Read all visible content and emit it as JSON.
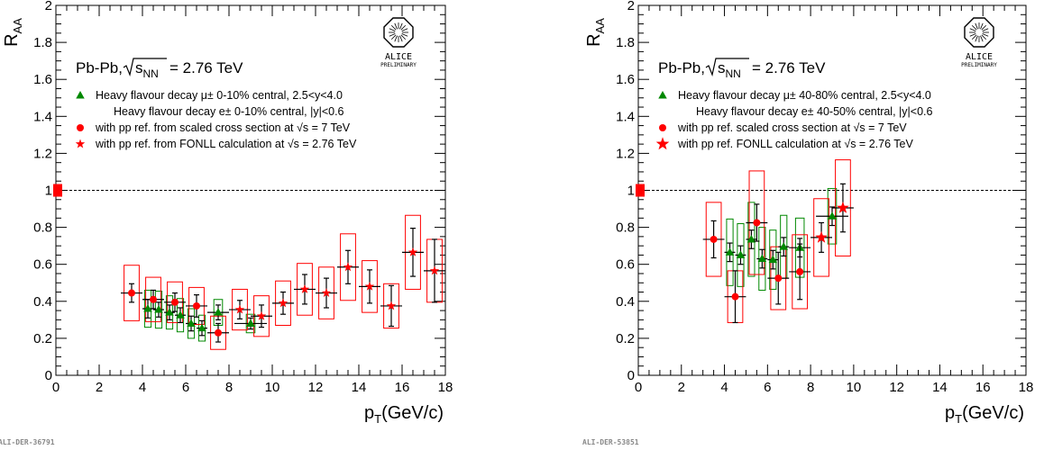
{
  "chart_data": [
    {
      "type": "scatter",
      "ylabel_main": "R",
      "ylabel_sub": "AA",
      "xlabel_main": "p",
      "xlabel_sub": "T",
      "xlabel_unit": "(GeV/c)",
      "xlim": [
        0,
        18
      ],
      "ylim": [
        0,
        2
      ],
      "xticks": [
        "0",
        "2",
        "4",
        "6",
        "8",
        "10",
        "12",
        "14",
        "16",
        "18"
      ],
      "yticks": [
        "0",
        "0.2",
        "0.4",
        "0.6",
        "0.8",
        "1",
        "1.2",
        "1.4",
        "1.6",
        "1.8",
        "2"
      ],
      "reference_line": 1,
      "system_label": "Pb-Pb, ",
      "system_energy": "= 2.76 TeV",
      "system_sqrt": "s",
      "system_sub": "NN",
      "logo_text": "ALICE",
      "logo_sub": "PRELIMINARY",
      "image_id": "ALI-DER-36791",
      "legend": [
        {
          "marker": "triangle",
          "color": "#008800",
          "text": "Heavy flavour decay μ± 0-10% central, 2.5<y<4.0"
        },
        {
          "marker": "none",
          "color": "#000000",
          "text": "Heavy flavour decay e± 0-10% central, |y|<0.6"
        },
        {
          "marker": "circle",
          "color": "#ff0000",
          "text": "with pp ref. from scaled cross section at √s = 7 TeV"
        },
        {
          "marker": "star",
          "color": "#ff0000",
          "text": "with pp ref. from FONLL calculation at  √s = 2.76 TeV"
        }
      ],
      "series": [
        {
          "name": "Heavy flavour decay μ± 0-10% central, 2.5<y<4.0",
          "marker": "triangle",
          "color": "#008800",
          "x": [
            4.25,
            4.75,
            5.25,
            5.75,
            6.25,
            6.75,
            7.5,
            9.0
          ],
          "y": [
            0.36,
            0.355,
            0.34,
            0.325,
            0.28,
            0.255,
            0.34,
            0.28
          ],
          "xerr": [
            0.25,
            0.25,
            0.25,
            0.25,
            0.25,
            0.25,
            0.5,
            0.75
          ],
          "yerr": [
            0.05,
            0.04,
            0.04,
            0.04,
            0.04,
            0.04,
            0.04,
            0.03
          ],
          "syst": [
            0.1,
            0.1,
            0.09,
            0.09,
            0.08,
            0.07,
            0.07,
            0.05
          ]
        },
        {
          "name": "with pp ref. from scaled cross section at √s = 7 TeV",
          "marker": "circle",
          "color": "#ff0000",
          "x": [
            3.5,
            4.5,
            5.5,
            6.5,
            7.5
          ],
          "y": [
            0.445,
            0.41,
            0.395,
            0.375,
            0.23
          ],
          "xerr": [
            0.5,
            0.5,
            0.5,
            0.5,
            0.5
          ],
          "yerr": [
            0.05,
            0.05,
            0.05,
            0.06,
            0.05
          ],
          "syst": [
            0.15,
            0.12,
            0.11,
            0.1,
            0.09
          ]
        },
        {
          "name": "with pp ref. from FONLL calculation at  √s = 2.76 TeV",
          "marker": "star",
          "color": "#ff0000",
          "x": [
            8.5,
            9.5,
            10.5,
            11.5,
            12.5,
            13.5,
            14.5,
            15.5,
            16.5,
            17.5
          ],
          "y": [
            0.355,
            0.32,
            0.39,
            0.465,
            0.445,
            0.585,
            0.48,
            0.375,
            0.665,
            0.565
          ],
          "xerr": [
            0.5,
            0.5,
            0.5,
            0.5,
            0.5,
            0.5,
            0.5,
            0.5,
            0.5,
            0.5
          ],
          "yerr": [
            0.05,
            0.06,
            0.06,
            0.08,
            0.08,
            0.09,
            0.09,
            0.11,
            0.13,
            0.17
          ],
          "syst": [
            0.11,
            0.11,
            0.12,
            0.14,
            0.14,
            0.18,
            0.14,
            0.12,
            0.2,
            0.17
          ]
        }
      ]
    },
    {
      "type": "scatter",
      "ylabel_main": "R",
      "ylabel_sub": "AA",
      "xlabel_main": "p",
      "xlabel_sub": "T",
      "xlabel_unit": "(GeV/c)",
      "xlim": [
        0,
        18
      ],
      "ylim": [
        0,
        2
      ],
      "xticks": [
        "0",
        "2",
        "4",
        "6",
        "8",
        "10",
        "12",
        "14",
        "16",
        "18"
      ],
      "yticks": [
        "0",
        "0.2",
        "0.4",
        "0.6",
        "0.8",
        "1",
        "1.2",
        "1.4",
        "1.6",
        "1.8",
        "2"
      ],
      "reference_line": 1,
      "system_label": "Pb-Pb, ",
      "system_energy": "= 2.76 TeV",
      "system_sqrt": "s",
      "system_sub": "NN",
      "logo_text": "ALICE",
      "logo_sub": "PRELIMINARY",
      "image_id": "ALI-DER-53851",
      "legend": [
        {
          "marker": "triangle",
          "color": "#008800",
          "text": "Heavy flavour decay μ± 40-80% central, 2.5<y<4.0"
        },
        {
          "marker": "none",
          "color": "#000000",
          "text": "Heavy flavour decay e± 40-50% central, |y|<0.6"
        },
        {
          "marker": "circle",
          "color": "#ff0000",
          "text": "with pp ref. scaled cross section at √s = 7 TeV"
        },
        {
          "marker": "star",
          "color": "#ff0000",
          "text": "with pp ref. FONLL calculation at  √s = 2.76 TeV"
        }
      ],
      "series": [
        {
          "name": "Heavy flavour decay μ± 40-80% central, 2.5<y<4.0",
          "marker": "triangle",
          "color": "#008800",
          "x": [
            4.25,
            4.75,
            5.25,
            5.75,
            6.25,
            6.75,
            7.5,
            9.0
          ],
          "y": [
            0.665,
            0.65,
            0.735,
            0.63,
            0.625,
            0.695,
            0.69,
            0.86
          ],
          "xerr": [
            0.25,
            0.25,
            0.25,
            0.25,
            0.25,
            0.25,
            0.5,
            0.75
          ],
          "yerr": [
            0.05,
            0.05,
            0.05,
            0.05,
            0.05,
            0.05,
            0.05,
            0.05
          ],
          "syst": [
            0.18,
            0.17,
            0.2,
            0.17,
            0.16,
            0.17,
            0.16,
            0.15
          ]
        },
        {
          "name": "with pp ref. scaled cross section at √s = 7 TeV",
          "marker": "circle",
          "color": "#ff0000",
          "x": [
            3.5,
            4.5,
            5.5,
            6.5,
            7.5
          ],
          "y": [
            0.735,
            0.425,
            0.825,
            0.525,
            0.56
          ],
          "xerr": [
            0.5,
            0.5,
            0.5,
            0.5,
            0.5
          ],
          "yerr": [
            0.1,
            0.14,
            0.1,
            0.14,
            0.15
          ],
          "syst": [
            0.2,
            0.14,
            0.28,
            0.17,
            0.2
          ]
        },
        {
          "name": "with pp ref. FONLL calculation at  √s = 2.76 TeV",
          "marker": "star",
          "color": "#ff0000",
          "x": [
            8.5,
            9.5
          ],
          "y": [
            0.745,
            0.905
          ],
          "xerr": [
            0.5,
            0.5
          ],
          "yerr": [
            0.08,
            0.13
          ],
          "syst": [
            0.21,
            0.26
          ]
        }
      ]
    }
  ]
}
